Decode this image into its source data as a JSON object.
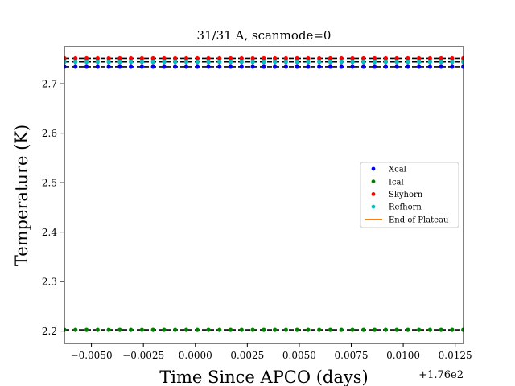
{
  "chart_data": {
    "type": "scatter",
    "title": "31/31 A, scanmode=0",
    "xlabel": "Time Since APCO (days)",
    "ylabel": "Temperature (K)",
    "x_offset_label": "+1.76e2",
    "xlim": [
      -0.0063,
      0.0129
    ],
    "ylim": [
      2.175,
      2.775
    ],
    "x_ticks": [
      -0.005,
      -0.0025,
      0.0,
      0.0025,
      0.005,
      0.0075,
      0.01,
      0.0125
    ],
    "x_tick_labels": [
      "−0.0050",
      "−0.0025",
      "0.0000",
      "0.0025",
      "0.0050",
      "0.0075",
      "0.0100",
      "0.0125"
    ],
    "y_ticks": [
      2.2,
      2.3,
      2.4,
      2.5,
      2.6,
      2.7
    ],
    "y_tick_labels": [
      "2.2",
      "2.3",
      "2.4",
      "2.5",
      "2.6",
      "2.7"
    ],
    "x_start": -0.0063,
    "x_step": 0.000533,
    "n_points": 37,
    "series": [
      {
        "name": "Xcal",
        "color": "#0000ff",
        "value": 2.7345
      },
      {
        "name": "Ical",
        "color": "#008000",
        "value": 2.2025
      },
      {
        "name": "Skyhorn",
        "color": "#ff0000",
        "value": 2.7515
      },
      {
        "name": "Refhorn",
        "color": "#00bfbf",
        "value": 2.7445
      }
    ],
    "end_of_plateau": {
      "name": "End of Plateau",
      "color": "#ff7f0e"
    },
    "dashed_lines": [
      2.2025,
      2.7345,
      2.7445,
      2.7515
    ],
    "legend_position": "center-right",
    "grid": false
  }
}
